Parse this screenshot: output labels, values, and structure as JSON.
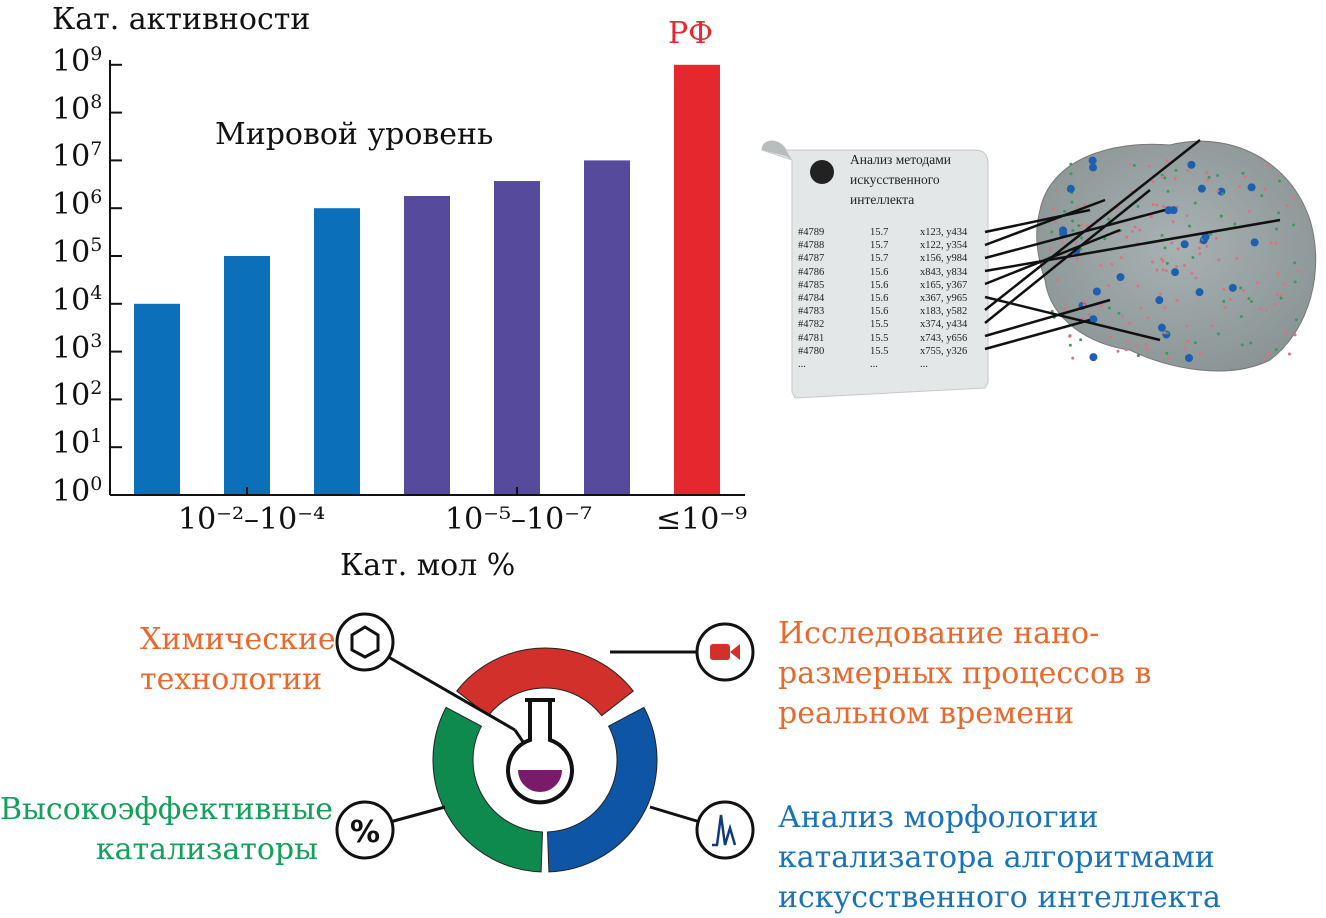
{
  "chart_data": {
    "type": "bar",
    "ylabel": "Кат. активности",
    "xlabel": "Кат. мол %",
    "yscale": "log",
    "ylim": [
      1,
      1000000000
    ],
    "ytick_labels": [
      {
        "base": "10",
        "exp": "0"
      },
      {
        "base": "10",
        "exp": "1"
      },
      {
        "base": "10",
        "exp": "2"
      },
      {
        "base": "10",
        "exp": "3"
      },
      {
        "base": "10",
        "exp": "4"
      },
      {
        "base": "10",
        "exp": "5"
      },
      {
        "base": "10",
        "exp": "6"
      },
      {
        "base": "10",
        "exp": "7"
      },
      {
        "base": "10",
        "exp": "8"
      },
      {
        "base": "10",
        "exp": "9"
      }
    ],
    "xtick_labels": [
      "10⁻²–10⁻⁴",
      "10⁻⁵–10⁻⁷",
      "≤10⁻⁹"
    ],
    "values": [
      10000,
      100000,
      1000000,
      1800000,
      3700000,
      10000000,
      1000000000
    ],
    "bar_colors": [
      "#0b70b9",
      "#0b70b9",
      "#0b70b9",
      "#554a9c",
      "#554a9c",
      "#554a9c",
      "#e5282d"
    ],
    "annotations": {
      "world": "Мировой уровень",
      "rf": "РФ"
    },
    "grid": false
  },
  "scroll": {
    "title": [
      "Анализ методами",
      "искусственного",
      "интеллекта"
    ],
    "rows": [
      [
        "#4789",
        "15.7",
        "x123, y434"
      ],
      [
        "#4788",
        "15.7",
        "x122, y354"
      ],
      [
        "#4787",
        "15.7",
        "x156, y984"
      ],
      [
        "#4786",
        "15.6",
        "x843, y834"
      ],
      [
        "#4785",
        "15.6",
        "x165, y367"
      ],
      [
        "#4784",
        "15.6",
        "x367, y965"
      ],
      [
        "#4783",
        "15.6",
        "x183, y582"
      ],
      [
        "#4782",
        "15.5",
        "x374, y434"
      ],
      [
        "#4781",
        "15.5",
        "x743, y656"
      ],
      [
        "#4780",
        "15.5",
        "x755, y326"
      ],
      [
        "...",
        "...",
        "..."
      ]
    ]
  },
  "diagram": {
    "chem": [
      "Химические",
      "технологии"
    ],
    "nano": [
      "Исследование нано-",
      "размерных процессов в",
      "реальном времени"
    ],
    "catalysts": [
      "Высокоэффективные",
      "катализаторы"
    ],
    "morph": [
      "Анализ морфологии",
      "катализатора алгоритмами",
      "искусственного интеллекта"
    ],
    "percent_symbol": "%",
    "colors": {
      "red": "#d1302b",
      "green": "#0f8a4e",
      "blue": "#0f55a6",
      "orange_text": "#e8692e",
      "green_text": "#13a05a",
      "blue_text": "#1a73b8",
      "flask_liquid": "#7a1a6a"
    }
  }
}
